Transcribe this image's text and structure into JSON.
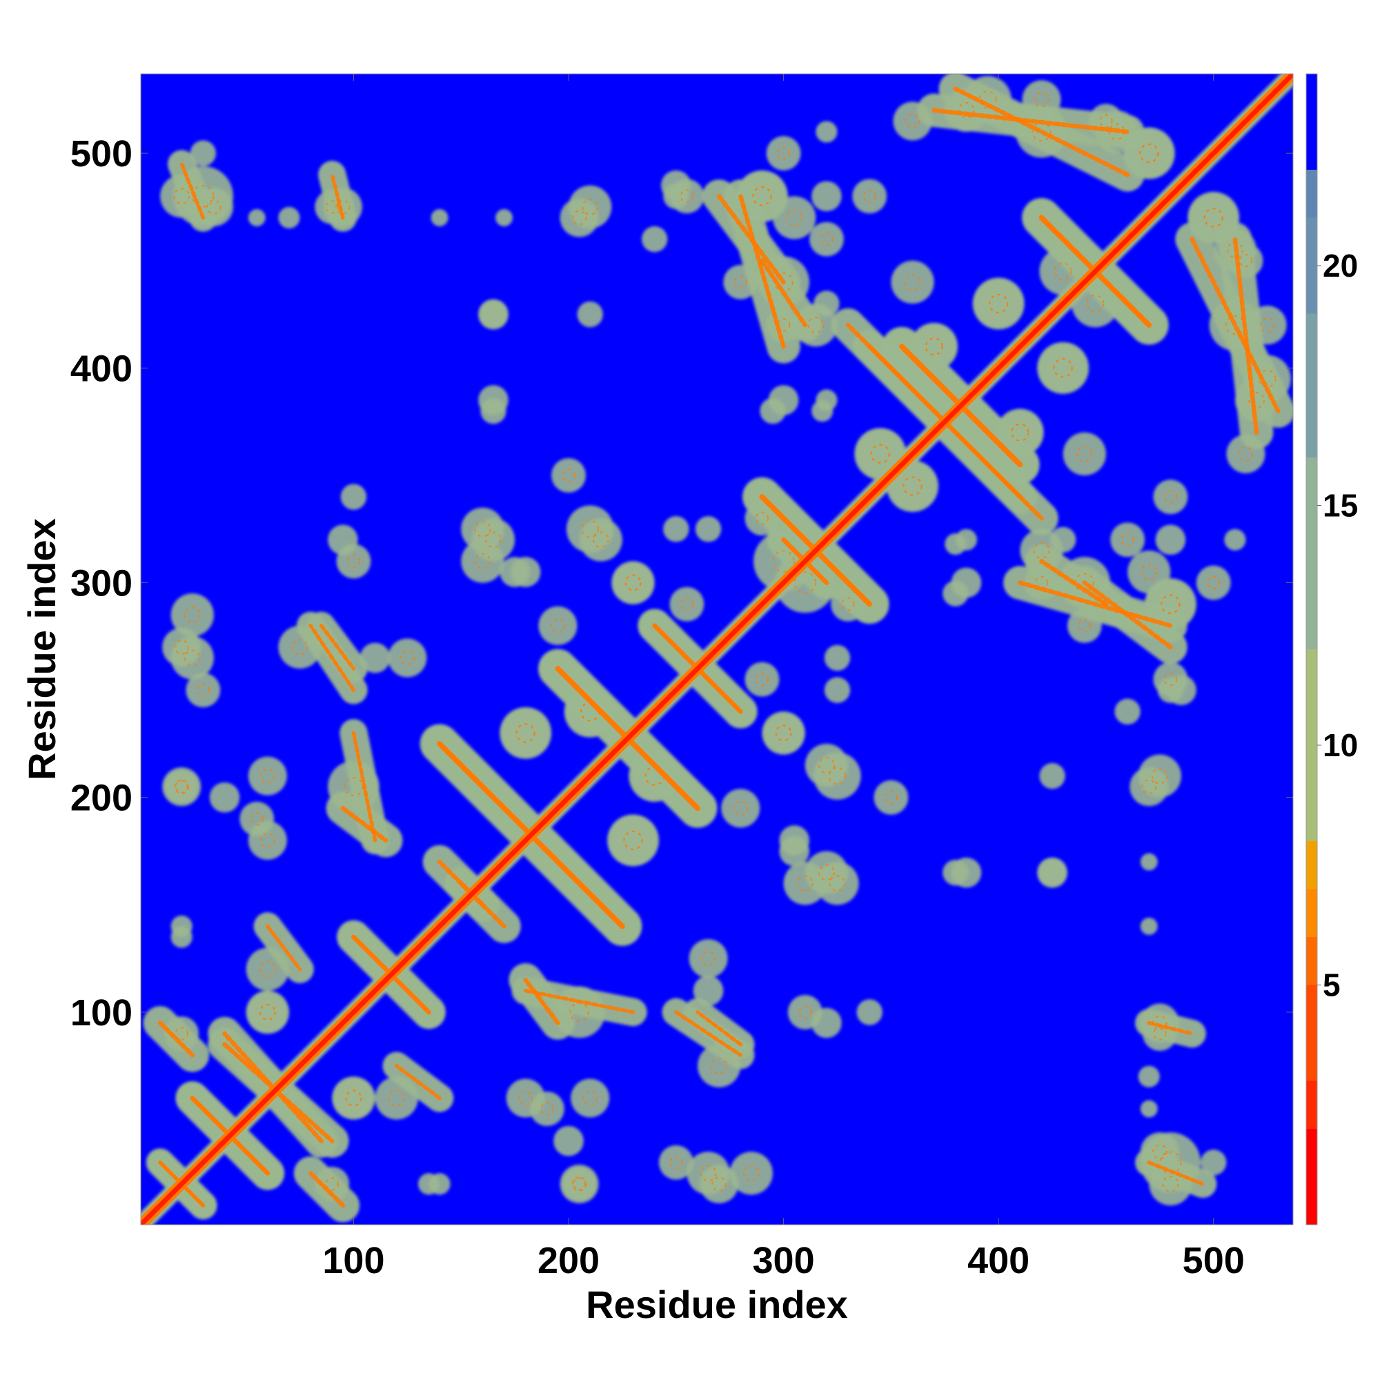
{
  "chart_data": {
    "type": "heatmap",
    "title": "",
    "xlabel": "Residue index",
    "ylabel": "Residue index",
    "xlim": [
      1,
      537
    ],
    "ylim": [
      1,
      537
    ],
    "x_ticks": [
      100,
      200,
      300,
      400,
      500
    ],
    "y_ticks": [
      100,
      200,
      300,
      400,
      500
    ],
    "colorbar": {
      "range": [
        0,
        24
      ],
      "ticks": [
        5,
        10,
        15,
        20
      ],
      "stops": [
        {
          "value": 0,
          "color": "#ff0000"
        },
        {
          "value": 2,
          "color": "#ff2a00"
        },
        {
          "value": 3,
          "color": "#ff4a00"
        },
        {
          "value": 5,
          "color": "#ff6a00"
        },
        {
          "value": 6,
          "color": "#ff8a00"
        },
        {
          "value": 7,
          "color": "#f2a000"
        },
        {
          "value": 8,
          "color": "#a9bf78"
        },
        {
          "value": 12,
          "color": "#93b398"
        },
        {
          "value": 16,
          "color": "#7aa0a8"
        },
        {
          "value": 19,
          "color": "#6a8fb0"
        },
        {
          "value": 21,
          "color": "#5f86b2"
        },
        {
          "value": 22,
          "color": "#0000ff"
        }
      ]
    },
    "background_value": 24,
    "colors": {
      "background": "#0000ff",
      "diagonal": "#ff2000",
      "contact_core": "#ff7a00",
      "contact_halo": "#9cb890"
    },
    "diagonal": {
      "start": 1,
      "end": 537
    },
    "contact_bands": [
      {
        "i1": 10,
        "j1": 30,
        "i2": 30,
        "j2": 10,
        "w": 5
      },
      {
        "i1": 10,
        "j1": 95,
        "i2": 25,
        "j2": 80,
        "w": 6
      },
      {
        "i1": 25,
        "j1": 60,
        "i2": 60,
        "j2": 25,
        "w": 6
      },
      {
        "i1": 40,
        "j1": 85,
        "i2": 90,
        "j2": 40,
        "w": 6
      },
      {
        "i1": 60,
        "j1": 140,
        "i2": 75,
        "j2": 120,
        "w": 5
      },
      {
        "i1": 100,
        "j1": 135,
        "i2": 135,
        "j2": 100,
        "w": 6
      },
      {
        "i1": 95,
        "j1": 195,
        "i2": 115,
        "j2": 180,
        "w": 6
      },
      {
        "i1": 85,
        "j1": 280,
        "i2": 100,
        "j2": 260,
        "w": 5
      },
      {
        "i1": 140,
        "j1": 225,
        "i2": 225,
        "j2": 140,
        "w": 7
      },
      {
        "i1": 150,
        "j1": 160,
        "i2": 170,
        "j2": 140,
        "w": 6
      },
      {
        "i1": 195,
        "j1": 260,
        "i2": 260,
        "j2": 195,
        "w": 7
      },
      {
        "i1": 240,
        "j1": 280,
        "i2": 280,
        "j2": 240,
        "w": 6
      },
      {
        "i1": 290,
        "j1": 340,
        "i2": 340,
        "j2": 290,
        "w": 7
      },
      {
        "i1": 300,
        "j1": 320,
        "i2": 320,
        "j2": 300,
        "w": 6
      },
      {
        "i1": 355,
        "j1": 410,
        "i2": 410,
        "j2": 355,
        "w": 7
      },
      {
        "i1": 370,
        "j1": 395,
        "i2": 395,
        "j2": 370,
        "w": 6
      },
      {
        "i1": 420,
        "j1": 470,
        "i2": 470,
        "j2": 420,
        "w": 7
      },
      {
        "i1": 290,
        "j1": 450,
        "i2": 310,
        "j2": 420,
        "w": 6
      },
      {
        "i1": 340,
        "j1": 410,
        "i2": 420,
        "j2": 330,
        "w": 6
      },
      {
        "i1": 410,
        "j1": 300,
        "i2": 480,
        "j2": 280,
        "w": 6
      },
      {
        "i1": 490,
        "j1": 460,
        "i2": 530,
        "j2": 380,
        "w": 6
      },
      {
        "i1": 370,
        "j1": 520,
        "i2": 460,
        "j2": 510,
        "w": 6
      },
      {
        "i1": 270,
        "j1": 480,
        "i2": 300,
        "j2": 440,
        "w": 6
      },
      {
        "i1": 180,
        "j1": 110,
        "i2": 230,
        "j2": 100,
        "w": 5
      },
      {
        "i1": 250,
        "j1": 100,
        "i2": 280,
        "j2": 80,
        "w": 5
      },
      {
        "i1": 470,
        "j1": 95,
        "i2": 490,
        "j2": 90,
        "w": 5
      },
      {
        "i1": 470,
        "j1": 30,
        "i2": 495,
        "j2": 20,
        "w": 5
      }
    ],
    "contact_blobs": [
      {
        "i": 20,
        "j": 480,
        "r": 10
      },
      {
        "i": 35,
        "j": 475,
        "r": 9
      },
      {
        "i": 90,
        "j": 475,
        "r": 8
      },
      {
        "i": 20,
        "j": 270,
        "r": 9
      },
      {
        "i": 20,
        "j": 205,
        "r": 8
      },
      {
        "i": 95,
        "j": 320,
        "r": 7
      },
      {
        "i": 165,
        "j": 320,
        "r": 10
      },
      {
        "i": 215,
        "j": 320,
        "r": 10
      },
      {
        "i": 265,
        "j": 325,
        "r": 6
      },
      {
        "i": 165,
        "j": 380,
        "r": 6
      },
      {
        "i": 210,
        "j": 425,
        "r": 6
      },
      {
        "i": 165,
        "j": 425,
        "r": 7
      },
      {
        "i": 205,
        "j": 470,
        "r": 9
      },
      {
        "i": 250,
        "j": 485,
        "r": 7
      },
      {
        "i": 290,
        "j": 480,
        "r": 12
      },
      {
        "i": 320,
        "j": 480,
        "r": 7
      },
      {
        "i": 295,
        "j": 380,
        "r": 6
      },
      {
        "i": 318,
        "j": 380,
        "r": 5
      },
      {
        "i": 325,
        "j": 250,
        "r": 6
      },
      {
        "i": 325,
        "j": 210,
        "r": 11
      },
      {
        "i": 325,
        "j": 160,
        "r": 10
      },
      {
        "i": 350,
        "j": 200,
        "r": 8
      },
      {
        "i": 385,
        "j": 320,
        "r": 5
      },
      {
        "i": 385,
        "j": 300,
        "r": 7
      },
      {
        "i": 385,
        "j": 165,
        "r": 7
      },
      {
        "i": 425,
        "j": 165,
        "r": 7
      },
      {
        "i": 475,
        "j": 210,
        "r": 10
      },
      {
        "i": 480,
        "j": 255,
        "r": 8
      },
      {
        "i": 475,
        "j": 95,
        "r": 9
      },
      {
        "i": 480,
        "j": 30,
        "r": 14
      },
      {
        "i": 500,
        "j": 30,
        "r": 6
      },
      {
        "i": 480,
        "j": 290,
        "r": 12
      },
      {
        "i": 440,
        "j": 360,
        "r": 10
      },
      {
        "i": 455,
        "j": 510,
        "r": 10
      },
      {
        "i": 420,
        "j": 525,
        "r": 9
      },
      {
        "i": 395,
        "j": 525,
        "r": 11
      },
      {
        "i": 360,
        "j": 515,
        "r": 9
      },
      {
        "i": 430,
        "j": 445,
        "r": 11
      },
      {
        "i": 510,
        "j": 420,
        "r": 12
      },
      {
        "i": 520,
        "j": 385,
        "r": 10
      },
      {
        "i": 340,
        "j": 480,
        "r": 8
      },
      {
        "i": 305,
        "j": 470,
        "r": 10
      },
      {
        "i": 320,
        "j": 510,
        "r": 5
      },
      {
        "i": 250,
        "j": 480,
        "r": 6
      },
      {
        "i": 205,
        "j": 20,
        "r": 9
      },
      {
        "i": 250,
        "j": 30,
        "r": 8
      },
      {
        "i": 265,
        "j": 25,
        "r": 10
      },
      {
        "i": 285,
        "j": 25,
        "r": 10
      },
      {
        "i": 90,
        "j": 20,
        "r": 8
      },
      {
        "i": 135,
        "j": 20,
        "r": 5
      },
      {
        "i": 120,
        "j": 60,
        "r": 10
      },
      {
        "i": 180,
        "j": 60,
        "r": 9
      },
      {
        "i": 210,
        "j": 60,
        "r": 9
      },
      {
        "i": 265,
        "j": 110,
        "r": 7
      },
      {
        "i": 310,
        "j": 160,
        "r": 10
      },
      {
        "i": 310,
        "j": 100,
        "r": 8
      },
      {
        "i": 340,
        "j": 100,
        "r": 6
      },
      {
        "i": 240,
        "j": 210,
        "r": 12
      },
      {
        "i": 210,
        "j": 240,
        "r": 12
      },
      {
        "i": 180,
        "j": 230,
        "r": 12
      },
      {
        "i": 230,
        "j": 180,
        "r": 12
      },
      {
        "i": 60,
        "j": 100,
        "r": 10
      },
      {
        "i": 100,
        "j": 60,
        "r": 10
      },
      {
        "i": 20,
        "j": 140,
        "r": 5
      },
      {
        "i": 40,
        "j": 200,
        "r": 7
      },
      {
        "i": 55,
        "j": 190,
        "r": 8
      },
      {
        "i": 75,
        "j": 270,
        "r": 10
      },
      {
        "i": 125,
        "j": 265,
        "r": 9
      },
      {
        "i": 100,
        "j": 205,
        "r": 12
      },
      {
        "i": 195,
        "j": 280,
        "r": 9
      },
      {
        "i": 230,
        "j": 300,
        "r": 10
      },
      {
        "i": 180,
        "j": 305,
        "r": 7
      },
      {
        "i": 300,
        "j": 230,
        "r": 10
      },
      {
        "i": 305,
        "j": 175,
        "r": 7
      },
      {
        "i": 255,
        "j": 290,
        "r": 8
      },
      {
        "i": 300,
        "j": 310,
        "r": 14
      },
      {
        "i": 330,
        "j": 290,
        "r": 8
      },
      {
        "i": 360,
        "j": 345,
        "r": 12
      },
      {
        "i": 345,
        "j": 360,
        "r": 12
      },
      {
        "i": 410,
        "j": 370,
        "r": 11
      },
      {
        "i": 370,
        "j": 410,
        "r": 11
      },
      {
        "i": 400,
        "j": 430,
        "r": 12
      },
      {
        "i": 430,
        "j": 400,
        "r": 12
      },
      {
        "i": 470,
        "j": 500,
        "r": 12
      },
      {
        "i": 500,
        "j": 470,
        "r": 12
      },
      {
        "i": 420,
        "j": 315,
        "r": 10
      },
      {
        "i": 440,
        "j": 300,
        "r": 12
      },
      {
        "i": 460,
        "j": 320,
        "r": 8
      },
      {
        "i": 515,
        "j": 450,
        "r": 8
      },
      {
        "i": 500,
        "j": 300,
        "r": 8
      },
      {
        "i": 240,
        "j": 460,
        "r": 6
      },
      {
        "i": 280,
        "j": 440,
        "r": 8
      },
      {
        "i": 300,
        "j": 420,
        "r": 8
      },
      {
        "i": 320,
        "j": 430,
        "r": 6
      },
      {
        "i": 140,
        "j": 470,
        "r": 4
      },
      {
        "i": 170,
        "j": 470,
        "r": 4
      },
      {
        "i": 70,
        "j": 470,
        "r": 5
      },
      {
        "i": 55,
        "j": 470,
        "r": 4
      }
    ]
  }
}
